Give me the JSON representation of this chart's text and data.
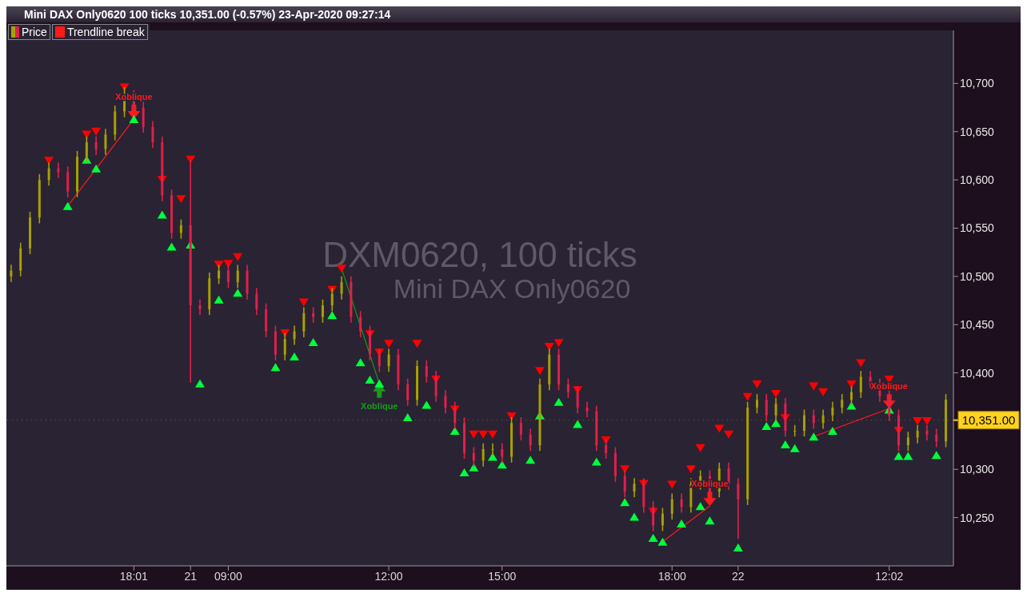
{
  "chart_data": {
    "type": "candlestick",
    "title": "Mini DAX Only0620 100 ticks 10,351.00 (-0.57%) 23-Apr-2020 09:27:14",
    "categories": [
      null,
      null,
      null,
      null,
      null,
      null,
      null,
      null,
      null,
      null,
      null,
      null,
      null,
      "18:01",
      null,
      null,
      null,
      null,
      null,
      "21",
      null,
      null,
      null,
      "09:00",
      null,
      null,
      null,
      null,
      null,
      null,
      null,
      null,
      null,
      null,
      null,
      null,
      null,
      null,
      null,
      null,
      "12:00",
      null,
      null,
      null,
      null,
      null,
      null,
      null,
      null,
      null,
      null,
      null,
      "15:00",
      null,
      null,
      null,
      null,
      null,
      null,
      null,
      null,
      null,
      null,
      null,
      null,
      null,
      null,
      null,
      null,
      null,
      "18:00",
      null,
      null,
      null,
      null,
      null,
      null,
      "22",
      null,
      null,
      null,
      null,
      null,
      null,
      null,
      null,
      null,
      null,
      null,
      null,
      null,
      null,
      null,
      "12:02",
      null,
      null,
      null,
      null,
      null,
      null
    ],
    "ylim": [
      10200,
      10755
    ],
    "yticks": [
      {
        "value": 10250,
        "label": "10,250"
      },
      {
        "value": 10300,
        "label": "10,300"
      },
      {
        "value": 10400,
        "label": "10,400"
      },
      {
        "value": 10450,
        "label": "10,450"
      },
      {
        "value": 10500,
        "label": "10,500"
      },
      {
        "value": 10550,
        "label": "10,550"
      },
      {
        "value": 10600,
        "label": "10,600"
      },
      {
        "value": 10650,
        "label": "10,650"
      },
      {
        "value": 10700,
        "label": "10,700"
      }
    ],
    "legend": "top left",
    "series": [
      {
        "name": "Price",
        "ohlc": [
          [
            10500,
            10512,
            10494,
            10506
          ],
          [
            10506,
            10535,
            10500,
            10529
          ],
          [
            10529,
            10567,
            10523,
            10561
          ],
          [
            10561,
            10606,
            10555,
            10600
          ],
          [
            10600,
            10618,
            10594,
            10612
          ],
          [
            10612,
            10618,
            10602,
            10608
          ],
          [
            10608,
            10614,
            10582,
            10588
          ],
          [
            10588,
            10630,
            10582,
            10624
          ],
          [
            10624,
            10645,
            10618,
            10639
          ],
          [
            10639,
            10645,
            10626,
            10632
          ],
          [
            10632,
            10653,
            10626,
            10647
          ],
          [
            10647,
            10677,
            10641,
            10671
          ],
          [
            10671,
            10696,
            10665,
            10687
          ],
          [
            10687,
            10693,
            10669,
            10675
          ],
          [
            10675,
            10681,
            10649,
            10655
          ],
          [
            10655,
            10661,
            10633,
            10639
          ],
          [
            10639,
            10645,
            10578,
            10584
          ],
          [
            10584,
            10590,
            10539,
            10545
          ],
          [
            10545,
            10559,
            10539,
            10553
          ],
          [
            10553,
            10620,
            10390,
            10470
          ],
          [
            10470,
            10476,
            10460,
            10466
          ],
          [
            10466,
            10504,
            10460,
            10498
          ],
          [
            10498,
            10512,
            10492,
            10506
          ],
          [
            10506,
            10512,
            10488,
            10494
          ],
          [
            10494,
            10512,
            10488,
            10506
          ],
          [
            10506,
            10512,
            10476,
            10482
          ],
          [
            10482,
            10488,
            10460,
            10466
          ],
          [
            10466,
            10472,
            10437,
            10443
          ],
          [
            10443,
            10449,
            10413,
            10419
          ],
          [
            10419,
            10441,
            10413,
            10435
          ],
          [
            10435,
            10449,
            10429,
            10443
          ],
          [
            10443,
            10468,
            10437,
            10462
          ],
          [
            10462,
            10468,
            10452,
            10458
          ],
          [
            10458,
            10476,
            10452,
            10470
          ],
          [
            10470,
            10488,
            10464,
            10482
          ],
          [
            10482,
            10500,
            10476,
            10494
          ],
          [
            10494,
            10500,
            10452,
            10458
          ],
          [
            10458,
            10464,
            10437,
            10443
          ],
          [
            10443,
            10449,
            10413,
            10419
          ],
          [
            10419,
            10425,
            10401,
            10407
          ],
          [
            10407,
            10425,
            10401,
            10419
          ],
          [
            10419,
            10425,
            10382,
            10388
          ],
          [
            10388,
            10394,
            10366,
            10372
          ],
          [
            10372,
            10413,
            10366,
            10407
          ],
          [
            10407,
            10413,
            10390,
            10396
          ],
          [
            10396,
            10402,
            10370,
            10376
          ],
          [
            10376,
            10382,
            10358,
            10364
          ],
          [
            10364,
            10370,
            10342,
            10348
          ],
          [
            10348,
            10354,
            10311,
            10317
          ],
          [
            10317,
            10323,
            10303,
            10309
          ],
          [
            10309,
            10327,
            10303,
            10321
          ],
          [
            10321,
            10327,
            10315,
            10321
          ],
          [
            10321,
            10327,
            10307,
            10313
          ],
          [
            10313,
            10354,
            10307,
            10348
          ],
          [
            10348,
            10354,
            10330,
            10336
          ],
          [
            10336,
            10342,
            10319,
            10325
          ],
          [
            10325,
            10394,
            10319,
            10388
          ],
          [
            10388,
            10425,
            10382,
            10419
          ],
          [
            10419,
            10425,
            10382,
            10388
          ],
          [
            10388,
            10394,
            10374,
            10380
          ],
          [
            10380,
            10386,
            10358,
            10364
          ],
          [
            10364,
            10370,
            10354,
            10360
          ],
          [
            10360,
            10366,
            10319,
            10325
          ],
          [
            10325,
            10331,
            10311,
            10317
          ],
          [
            10317,
            10323,
            10287,
            10293
          ],
          [
            10293,
            10299,
            10271,
            10277
          ],
          [
            10277,
            10291,
            10271,
            10285
          ],
          [
            10285,
            10291,
            10255,
            10261
          ],
          [
            10261,
            10267,
            10236,
            10242
          ],
          [
            10242,
            10260,
            10236,
            10254
          ],
          [
            10254,
            10275,
            10248,
            10269
          ],
          [
            10269,
            10275,
            10255,
            10261
          ],
          [
            10261,
            10291,
            10255,
            10285
          ],
          [
            10285,
            10299,
            10279,
            10293
          ],
          [
            10293,
            10299,
            10271,
            10277
          ],
          [
            10277,
            10307,
            10271,
            10301
          ],
          [
            10301,
            10307,
            10279,
            10285
          ],
          [
            10285,
            10291,
            10228,
            10269
          ],
          [
            10269,
            10370,
            10263,
            10364
          ],
          [
            10364,
            10378,
            10358,
            10372
          ],
          [
            10372,
            10378,
            10350,
            10356
          ],
          [
            10356,
            10374,
            10350,
            10368
          ],
          [
            10368,
            10374,
            10334,
            10340
          ],
          [
            10340,
            10346,
            10334,
            10340
          ],
          [
            10340,
            10362,
            10334,
            10356
          ],
          [
            10356,
            10362,
            10342,
            10348
          ],
          [
            10348,
            10362,
            10342,
            10356
          ],
          [
            10356,
            10370,
            10350,
            10364
          ],
          [
            10364,
            10378,
            10358,
            10372
          ],
          [
            10372,
            10386,
            10366,
            10380
          ],
          [
            10380,
            10402,
            10374,
            10396
          ],
          [
            10396,
            10402,
            10382,
            10388
          ],
          [
            10388,
            10394,
            10370,
            10376
          ],
          [
            10376,
            10382,
            10350,
            10356
          ],
          [
            10356,
            10362,
            10319,
            10325
          ],
          [
            10325,
            10339,
            10319,
            10333
          ],
          [
            10333,
            10346,
            10327,
            10340
          ],
          [
            10340,
            10346,
            10330,
            10336
          ],
          [
            10336,
            10342,
            10323,
            10329
          ],
          [
            10329,
            10378,
            10323,
            10372
          ]
        ],
        "colors": [
          "#a8a000",
          "#a8a000",
          "#a8a000",
          "#a8a000",
          "#a8a000",
          "#e0204a",
          "#e0204a",
          "#a8a000",
          "#a8a000",
          "#e0204a",
          "#a8a000",
          "#a8a000",
          "#a8a000",
          "#e0204a",
          "#e0204a",
          "#e0204a",
          "#e0204a",
          "#e0204a",
          "#a8a000",
          "#e0204a",
          "#e0204a",
          "#a8a000",
          "#a8a000",
          "#e0204a",
          "#a8a000",
          "#e0204a",
          "#e0204a",
          "#e0204a",
          "#e0204a",
          "#a8a000",
          "#a8a000",
          "#a8a000",
          "#e0204a",
          "#a8a000",
          "#a8a000",
          "#a8a000",
          "#e0204a",
          "#e0204a",
          "#e0204a",
          "#e0204a",
          "#a8a000",
          "#e0204a",
          "#e0204a",
          "#a8a000",
          "#e0204a",
          "#e0204a",
          "#e0204a",
          "#e0204a",
          "#e0204a",
          "#e0204a",
          "#a8a000",
          "#a8a000",
          "#e0204a",
          "#a8a000",
          "#e0204a",
          "#e0204a",
          "#a8a000",
          "#a8a000",
          "#e0204a",
          "#e0204a",
          "#e0204a",
          "#e0204a",
          "#e0204a",
          "#e0204a",
          "#e0204a",
          "#e0204a",
          "#a8a000",
          "#e0204a",
          "#e0204a",
          "#a8a000",
          "#a8a000",
          "#e0204a",
          "#a8a000",
          "#a8a000",
          "#e0204a",
          "#a8a000",
          "#e0204a",
          "#e0204a",
          "#a8a000",
          "#a8a000",
          "#e0204a",
          "#a8a000",
          "#e0204a",
          "#a8a000",
          "#a8a000",
          "#e0204a",
          "#a8a000",
          "#a8a000",
          "#a8a000",
          "#a8a000",
          "#a8a000",
          "#e0204a",
          "#e0204a",
          "#e0204a",
          "#e0204a",
          "#a8a000",
          "#a8a000",
          "#e0204a",
          "#e0204a",
          "#a8a000"
        ]
      },
      {
        "type": "line",
        "name": "Trendline break",
        "color": "#ff1a1a",
        "values": [
          null,
          null,
          null,
          null,
          null,
          null,
          10573,
          null,
          null,
          null,
          null,
          null,
          null,
          10663,
          null,
          null,
          null,
          null,
          null,
          null,
          null,
          null,
          null,
          null,
          null,
          null,
          null,
          null,
          null,
          null,
          null,
          null,
          null,
          null,
          null,
          null,
          null,
          null,
          null,
          null,
          null,
          null,
          null,
          null,
          null,
          null,
          null,
          null,
          null,
          null,
          null,
          null,
          null,
          null,
          null,
          null,
          null,
          null,
          null,
          null,
          null,
          null,
          null,
          null,
          null,
          null,
          null,
          null,
          null,
          null,
          null,
          null,
          null,
          null,
          null,
          null,
          null,
          null,
          null,
          null,
          null,
          null,
          null,
          null,
          null,
          null,
          null,
          null,
          null,
          null,
          null,
          null,
          null,
          null,
          null,
          null,
          null,
          null,
          null,
          null
        ]
      },
      {
        "type": "line",
        "color": "#1a9a1a",
        "values": [
          null,
          null,
          null,
          null,
          null,
          null,
          null,
          null,
          null,
          null,
          null,
          null,
          null,
          null,
          null,
          null,
          null,
          null,
          null,
          null,
          null,
          null,
          null,
          null,
          null,
          null,
          null,
          null,
          null,
          null,
          null,
          null,
          null,
          null,
          null,
          10508,
          null,
          null,
          null,
          10389,
          null,
          null,
          null,
          null,
          null,
          null,
          null,
          null,
          null,
          null,
          null,
          null,
          null,
          null,
          null,
          null,
          null,
          null,
          null,
          null,
          null,
          null,
          null,
          null,
          null,
          null,
          null,
          null,
          null,
          null,
          null,
          null,
          null,
          null,
          null,
          null,
          null,
          null,
          null,
          null,
          null,
          null,
          null,
          null,
          null,
          null,
          null,
          null,
          null,
          null,
          null,
          null,
          null,
          null,
          null,
          null,
          null,
          null,
          null,
          null
        ]
      },
      {
        "type": "line",
        "color": "#ff1a1a",
        "values": [
          null,
          null,
          null,
          null,
          null,
          null,
          null,
          null,
          null,
          null,
          null,
          null,
          null,
          null,
          null,
          null,
          null,
          null,
          null,
          null,
          null,
          null,
          null,
          null,
          null,
          null,
          null,
          null,
          null,
          null,
          null,
          null,
          null,
          null,
          null,
          null,
          null,
          null,
          null,
          null,
          null,
          null,
          null,
          null,
          null,
          null,
          null,
          null,
          null,
          null,
          null,
          null,
          null,
          null,
          null,
          null,
          null,
          null,
          null,
          null,
          null,
          null,
          null,
          null,
          null,
          null,
          null,
          null,
          null,
          10225,
          null,
          null,
          null,
          null,
          10262,
          null,
          null,
          null,
          null,
          null,
          null,
          null,
          null,
          null,
          null,
          null,
          null,
          null,
          null,
          null,
          null,
          null,
          null,
          null,
          null,
          null,
          null,
          null,
          null,
          null
        ]
      },
      {
        "type": "line",
        "color": "#ff1a1a",
        "values": [
          null,
          null,
          null,
          null,
          null,
          null,
          null,
          null,
          null,
          null,
          null,
          null,
          null,
          null,
          null,
          null,
          null,
          null,
          null,
          null,
          null,
          null,
          null,
          null,
          null,
          null,
          null,
          null,
          null,
          null,
          null,
          null,
          null,
          null,
          null,
          null,
          null,
          null,
          null,
          null,
          null,
          null,
          null,
          null,
          null,
          null,
          null,
          null,
          null,
          null,
          null,
          null,
          null,
          null,
          null,
          null,
          null,
          null,
          null,
          null,
          null,
          null,
          null,
          null,
          null,
          null,
          null,
          null,
          null,
          null,
          null,
          null,
          null,
          null,
          null,
          null,
          null,
          null,
          null,
          null,
          null,
          null,
          null,
          null,
          null,
          10334,
          null,
          null,
          null,
          null,
          null,
          null,
          null,
          10363,
          null,
          null,
          null,
          null,
          null,
          null
        ]
      },
      {
        "type": "scatter",
        "marker": "triangle-down",
        "color": "#ff0000",
        "values": [
          null,
          null,
          null,
          null,
          10620,
          null,
          null,
          null,
          10647,
          10650,
          null,
          null,
          10696,
          null,
          null,
          null,
          10600,
          null,
          10580,
          10621,
          null,
          null,
          10512,
          10513,
          10520,
          null,
          null,
          null,
          null,
          10441,
          null,
          10473,
          null,
          null,
          10486,
          10508,
          null,
          null,
          10440,
          10421,
          10430,
          null,
          null,
          10430,
          null,
          10393,
          null,
          10362,
          null,
          10336,
          10336,
          10336,
          null,
          10355,
          null,
          null,
          10402,
          10427,
          10431,
          null,
          10382,
          null,
          null,
          10330,
          null,
          10300,
          null,
          10285,
          10256,
          null,
          10284,
          null,
          10300,
          10322,
          null,
          10342,
          10336,
          null,
          10375,
          10388,
          null,
          10378,
          10353,
          null,
          null,
          10386,
          10380,
          null,
          null,
          10388,
          10410,
          null,
          null,
          10393,
          10340,
          null,
          10350,
          10350,
          null,
          null
        ]
      },
      {
        "type": "scatter",
        "marker": "triangle",
        "color": "#00ff3c",
        "values": [
          null,
          null,
          null,
          null,
          null,
          null,
          10573,
          null,
          10621,
          10612,
          null,
          null,
          null,
          10663,
          null,
          null,
          10564,
          10531,
          null,
          10533,
          10389,
          null,
          10476,
          null,
          10483,
          null,
          null,
          null,
          10406,
          null,
          10417,
          null,
          10432,
          null,
          10460,
          null,
          null,
          10411,
          10393,
          10389,
          null,
          null,
          10354,
          null,
          10367,
          null,
          null,
          10340,
          10297,
          10302,
          null,
          10313,
          10305,
          null,
          null,
          10310,
          10356,
          null,
          10370,
          null,
          10347,
          null,
          10308,
          null,
          null,
          10266,
          10251,
          null,
          10229,
          10225,
          null,
          10244,
          null,
          10262,
          10247,
          null,
          null,
          10219,
          null,
          null,
          10345,
          10348,
          10326,
          10322,
          null,
          10334,
          null,
          10340,
          null,
          10366,
          null,
          null,
          null,
          10362,
          10314,
          10314,
          null,
          null,
          10315,
          null
        ]
      }
    ],
    "ref_lines": [
      {
        "axis": "y",
        "value": 10351,
        "label": "10,351.00",
        "color": "#ffd21f"
      }
    ],
    "annotations": [
      "DXM0620, 100 ticks",
      "Mini DAX Only0620",
      "Xoblique",
      "Xoblique",
      "Xoblique",
      "Xoblique"
    ]
  }
}
